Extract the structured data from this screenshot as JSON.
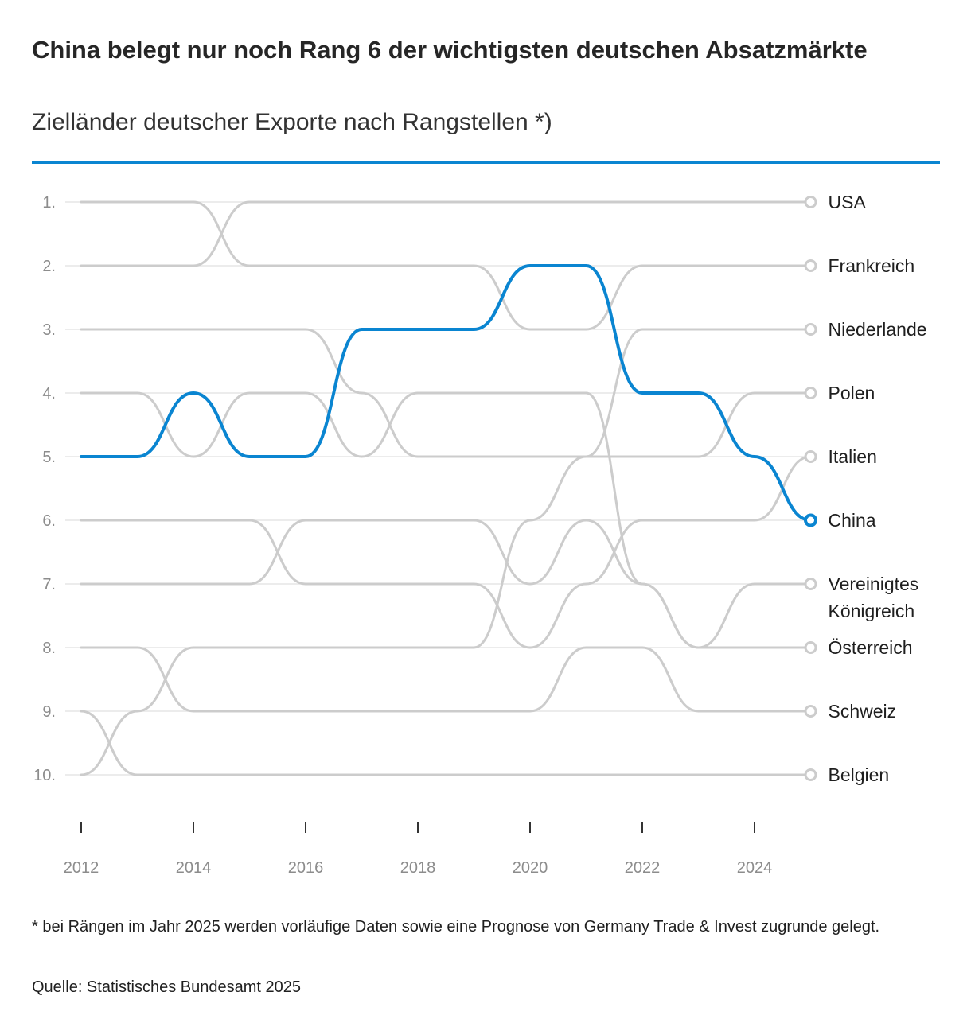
{
  "header": {
    "title": "China belegt nur noch Rang 6 der wichtigsten deutschen Absatzmärkte",
    "subtitle": "Zielländer deutscher Exporte nach Rangstellen *)"
  },
  "footer": {
    "footnote": "* bei Rängen im Jahr 2025 werden vorläufige Daten sowie eine Prognose von Germany Trade & Invest zugrunde gelegt.",
    "source": "Quelle: Statistisches Bundesamt 2025"
  },
  "colors": {
    "highlight": "#0a85d1",
    "muted": "#cccccc",
    "grid": "#e6e6e6",
    "axis_text": "#8c8c8c"
  },
  "chart_data": {
    "type": "line",
    "subtype": "bump",
    "title": "China belegt nur noch Rang 6 der wichtigsten deutschen Absatzmärkte",
    "subtitle": "Zielländer deutscher Exporte nach Rangstellen *)",
    "xlabel": "",
    "ylabel": "",
    "x": [
      2012,
      2013,
      2014,
      2015,
      2016,
      2017,
      2018,
      2019,
      2020,
      2021,
      2022,
      2023,
      2024,
      2025
    ],
    "x_ticks": [
      2012,
      2014,
      2016,
      2018,
      2020,
      2022,
      2024
    ],
    "y_ticks": [
      "1.",
      "2.",
      "3.",
      "4.",
      "5.",
      "6.",
      "7.",
      "8.",
      "9.",
      "10."
    ],
    "ylim": [
      1,
      10
    ],
    "y_reversed": true,
    "highlight": "China",
    "series": [
      {
        "name": "USA",
        "label_lines": [
          "USA"
        ],
        "values": [
          2,
          2,
          2,
          1,
          1,
          1,
          1,
          1,
          1,
          1,
          1,
          1,
          1,
          1
        ]
      },
      {
        "name": "Frankreich",
        "label_lines": [
          "Frankreich"
        ],
        "values": [
          1,
          1,
          1,
          2,
          2,
          2,
          2,
          2,
          3,
          3,
          2,
          2,
          2,
          2
        ]
      },
      {
        "name": "Niederlande",
        "label_lines": [
          "Niederlande"
        ],
        "values": [
          3,
          3,
          3,
          3,
          3,
          4,
          5,
          5,
          5,
          5,
          3,
          3,
          3,
          3
        ]
      },
      {
        "name": "Polen",
        "label_lines": [
          "Polen"
        ],
        "values": [
          10,
          9,
          8,
          8,
          8,
          8,
          8,
          8,
          6,
          5,
          5,
          5,
          4,
          4
        ]
      },
      {
        "name": "Italien",
        "label_lines": [
          "Italien"
        ],
        "values": [
          6,
          6,
          6,
          6,
          7,
          7,
          7,
          7,
          8,
          7,
          6,
          6,
          6,
          5
        ]
      },
      {
        "name": "China",
        "label_lines": [
          "China"
        ],
        "values": [
          5,
          5,
          4,
          5,
          5,
          3,
          3,
          3,
          2,
          2,
          4,
          4,
          5,
          6
        ]
      },
      {
        "name": "Vereinigtes Königreich",
        "label_lines": [
          "Vereinigtes",
          "Königreich"
        ],
        "values": [
          4,
          4,
          5,
          4,
          4,
          5,
          4,
          4,
          4,
          4,
          7,
          8,
          7,
          7
        ]
      },
      {
        "name": "Österreich",
        "label_lines": [
          "Österreich"
        ],
        "values": [
          7,
          7,
          7,
          7,
          6,
          6,
          6,
          6,
          7,
          6,
          7,
          8,
          8,
          8
        ]
      },
      {
        "name": "Schweiz",
        "label_lines": [
          "Schweiz"
        ],
        "values": [
          8,
          8,
          9,
          9,
          9,
          9,
          9,
          9,
          9,
          8,
          8,
          9,
          9,
          9
        ]
      },
      {
        "name": "Belgien",
        "label_lines": [
          "Belgien"
        ],
        "values": [
          9,
          10,
          10,
          10,
          10,
          10,
          10,
          10,
          10,
          10,
          10,
          10,
          10,
          10
        ]
      }
    ]
  }
}
